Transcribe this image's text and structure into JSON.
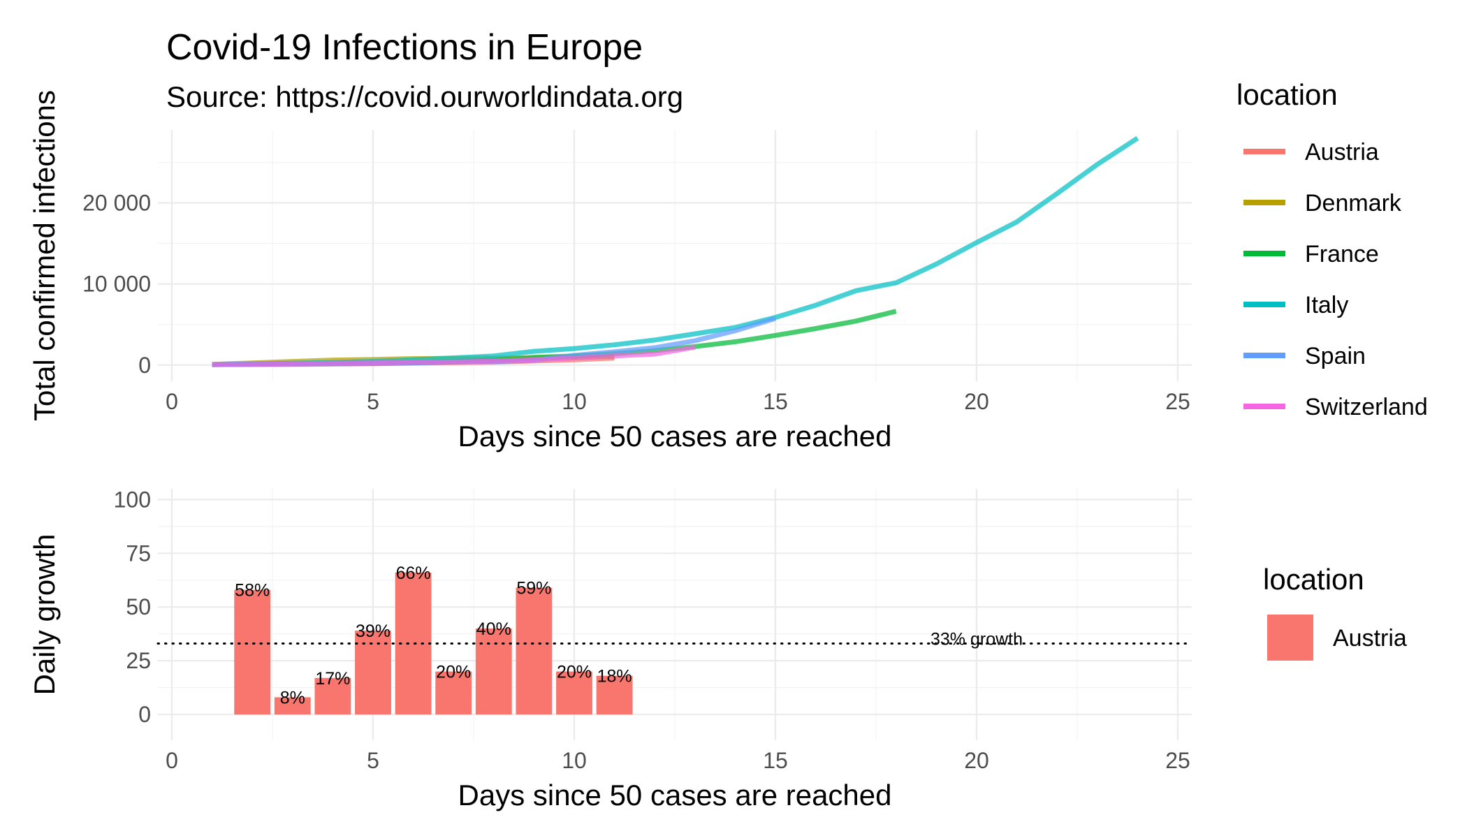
{
  "title": "Covid-19 Infections in Europe",
  "subtitle": "Source: https://covid.ourworldindata.org",
  "chart_data": [
    {
      "type": "line",
      "xlabel": "Days since 50 cases are reached",
      "ylabel": "Total confirmed infections",
      "xlim": [
        0,
        25
      ],
      "ylim": [
        -2000,
        29000
      ],
      "x_ticks": [
        0,
        5,
        10,
        15,
        20,
        25
      ],
      "x_tick_labels": [
        "0",
        "5",
        "10",
        "15",
        "20",
        "25"
      ],
      "y_ticks": [
        0,
        10000,
        20000
      ],
      "y_tick_labels": [
        "0",
        "10 000",
        "20 000"
      ],
      "grid": true,
      "legend": {
        "title": "location",
        "placement": "right"
      },
      "series": [
        {
          "name": "Austria",
          "color": "#F8766D",
          "x": [
            1,
            2,
            3,
            4,
            5,
            6,
            7,
            8,
            9,
            10,
            11
          ],
          "y": [
            55,
            79,
            104,
            131,
            182,
            246,
            302,
            361,
            504,
            655,
            860
          ]
        },
        {
          "name": "Denmark",
          "color": "#B79F00",
          "x": [
            1,
            2,
            3,
            4,
            5,
            6,
            7,
            8,
            9,
            10,
            11
          ],
          "y": [
            90,
            262,
            442,
            615,
            686,
            801,
            827,
            864,
            914,
            977,
            1057
          ]
        },
        {
          "name": "France",
          "color": "#00BA38",
          "x": [
            1,
            2,
            3,
            4,
            5,
            6,
            7,
            8,
            9,
            10,
            11,
            12,
            13,
            14,
            15,
            16,
            17,
            18
          ],
          "y": [
            57,
            100,
            130,
            191,
            212,
            285,
            423,
            613,
            949,
            1126,
            1412,
            1784,
            2281,
            2876,
            3661,
            4499,
            5423,
            6633
          ]
        },
        {
          "name": "Italy",
          "color": "#00BFC4",
          "x": [
            1,
            2,
            3,
            4,
            5,
            6,
            7,
            8,
            9,
            10,
            11,
            12,
            13,
            14,
            15,
            16,
            17,
            18,
            19,
            20,
            21,
            22,
            23,
            24
          ],
          "y": [
            62,
            155,
            229,
            322,
            453,
            655,
            888,
            1128,
            1694,
            2036,
            2502,
            3089,
            3858,
            4636,
            5883,
            7375,
            9172,
            10149,
            12462,
            15113,
            17660,
            21157,
            24747,
            27980
          ]
        },
        {
          "name": "Spain",
          "color": "#619CFF",
          "x": [
            1,
            2,
            3,
            4,
            5,
            6,
            7,
            8,
            9,
            10,
            11,
            12,
            13,
            14,
            15
          ],
          "y": [
            66,
            83,
            114,
            151,
            200,
            261,
            374,
            430,
            589,
            1204,
            1639,
            2140,
            3004,
            4231,
            5753
          ]
        },
        {
          "name": "Switzerland",
          "color": "#F564E3",
          "x": [
            1,
            2,
            3,
            4,
            5,
            6,
            7,
            8,
            9,
            10,
            11,
            12,
            13
          ],
          "y": [
            58,
            87,
            120,
            214,
            268,
            337,
            374,
            491,
            645,
            858,
            1125,
            1359,
            2200
          ]
        }
      ]
    },
    {
      "type": "bar",
      "xlabel": "Days since 50 cases are reached",
      "ylabel": "Daily growth",
      "xlim": [
        0,
        25
      ],
      "ylim": [
        -12,
        105
      ],
      "x_ticks": [
        0,
        5,
        10,
        15,
        20,
        25
      ],
      "x_tick_labels": [
        "0",
        "5",
        "10",
        "15",
        "20",
        "25"
      ],
      "y_ticks": [
        0,
        25,
        50,
        75,
        100
      ],
      "y_tick_labels": [
        "0",
        "25",
        "50",
        "75",
        "100"
      ],
      "grid": true,
      "legend": {
        "title": "location",
        "placement": "right",
        "entries": [
          {
            "name": "Austria",
            "color": "#F8766D"
          }
        ]
      },
      "series": [
        {
          "name": "Austria",
          "color": "#F8766D",
          "x": [
            2,
            3,
            4,
            5,
            6,
            7,
            8,
            9,
            10,
            11
          ],
          "values": [
            58,
            8,
            17,
            39,
            66,
            20,
            40,
            59,
            20,
            18
          ],
          "labels": [
            "58%",
            "8%",
            "17%",
            "39%",
            "66%",
            "20%",
            "40%",
            "59%",
            "20%",
            "18%"
          ]
        }
      ],
      "reference_line": {
        "y": 33,
        "style": "dotted",
        "label": "33% growth",
        "label_x": 20
      }
    }
  ]
}
